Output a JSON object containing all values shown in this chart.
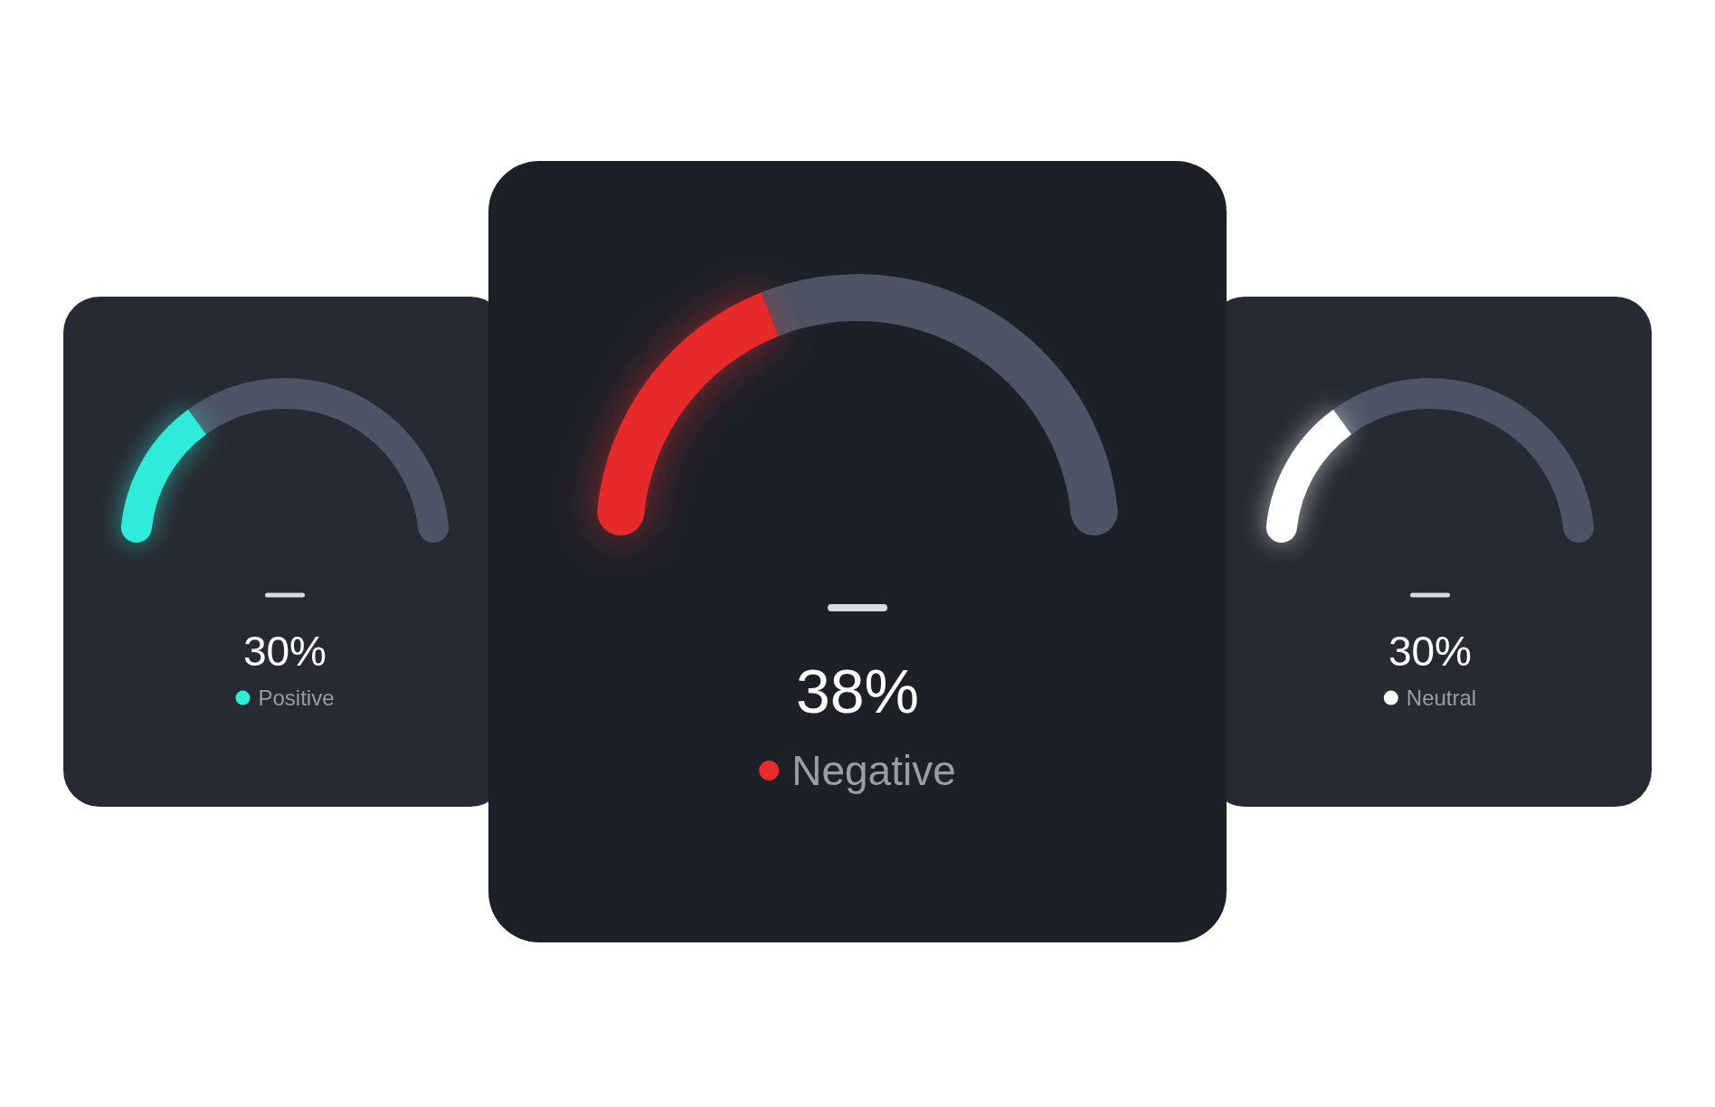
{
  "chart_data": [
    {
      "type": "donut",
      "categories": [
        "Positive",
        null
      ],
      "values": [
        30,
        70
      ],
      "colors": [
        "#2eecd8",
        "#4c5465"
      ],
      "value_labels": [
        "30%",
        null
      ],
      "legend": "bottom"
    },
    {
      "type": "donut",
      "categories": [
        "Negative",
        null
      ],
      "values": [
        38,
        62
      ],
      "colors": [
        "#e62b2b",
        "#4c5465"
      ],
      "value_labels": [
        "38%",
        null
      ],
      "legend": "bottom"
    },
    {
      "type": "donut",
      "categories": [
        "Neutral",
        null
      ],
      "values": [
        30,
        70
      ],
      "colors": [
        "#ffffff",
        "#4c5465"
      ],
      "value_labels": [
        "30%",
        null
      ],
      "legend": "bottom"
    }
  ]
}
